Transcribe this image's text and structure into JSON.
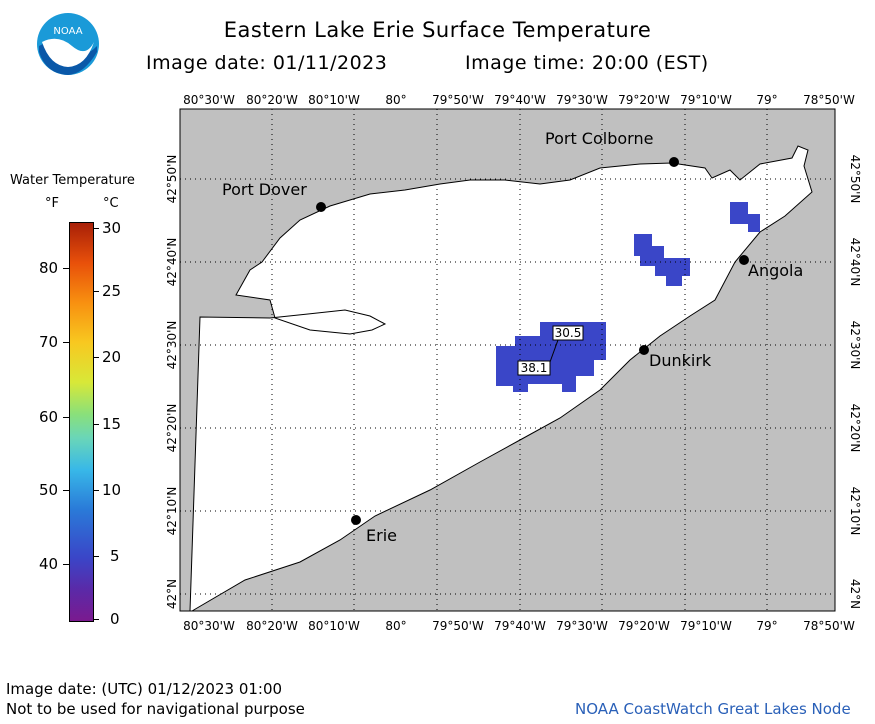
{
  "title": "Eastern Lake Erie Surface Temperature",
  "image_date_label": "Image date: 01/11/2023",
  "image_time_label": "Image time: 20:00 (EST)",
  "logo_text": "NOAA",
  "legend": {
    "title": "Water Temperature",
    "unit_f": "°F",
    "unit_c": "°C",
    "f_ticks": [
      "80",
      "70",
      "60",
      "50",
      "40"
    ],
    "c_ticks": [
      "30",
      "25",
      "20",
      "15",
      "10",
      "5",
      "0"
    ]
  },
  "lon_labels": [
    "80°30'W",
    "80°20'W",
    "80°10'W",
    "80°",
    "79°50'W",
    "79°40'W",
    "79°30'W",
    "79°20'W",
    "79°10'W",
    "79°",
    "78°50'W"
  ],
  "lat_labels": [
    "42°50'N",
    "42°40'N",
    "42°30'N",
    "42°20'N",
    "42°10'N",
    "42°N"
  ],
  "cities": {
    "port_colborne": "Port Colborne",
    "port_dover": "Port Dover",
    "angola": "Angola",
    "dunkirk": "Dunkirk",
    "erie": "Erie"
  },
  "readings": {
    "a": "30.5",
    "b": "38.1"
  },
  "colors": {
    "land": "#c0c0c0",
    "lake": "#ffffff",
    "cold_water": "#3a46c8"
  },
  "footer": {
    "utc_date": "Image date: (UTC) 01/12/2023  01:00",
    "disclaimer": "Not to be used for navigational purpose",
    "credit": "NOAA CoastWatch Great Lakes Node"
  }
}
